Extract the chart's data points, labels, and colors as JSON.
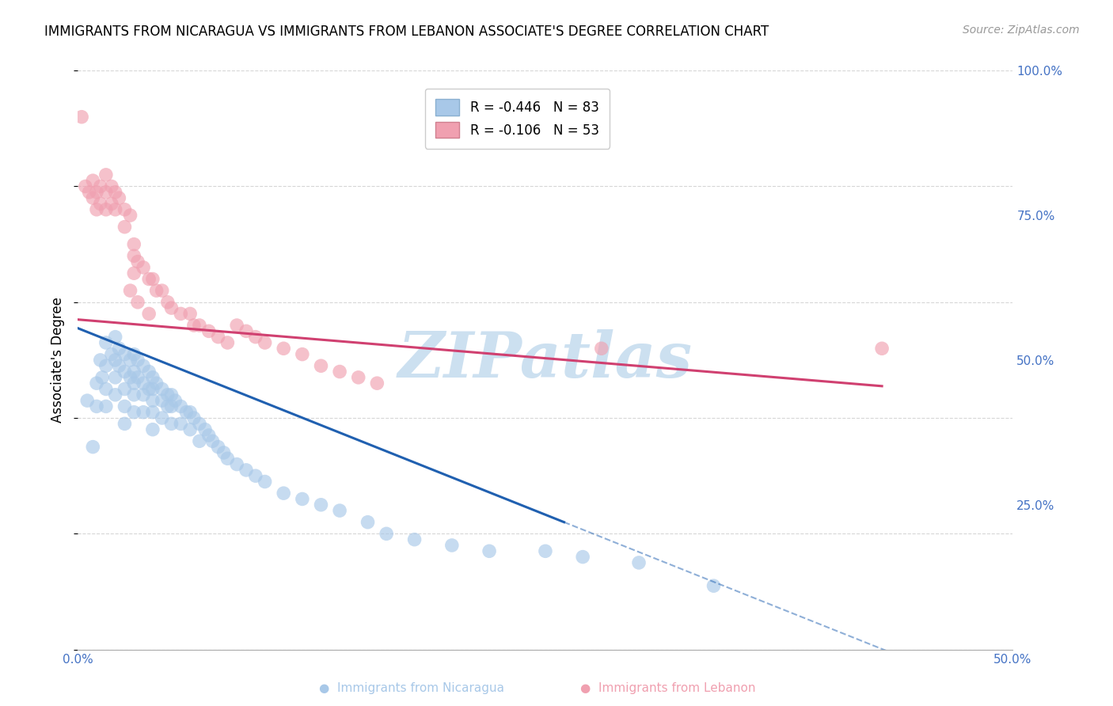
{
  "title": "IMMIGRANTS FROM NICARAGUA VS IMMIGRANTS FROM LEBANON ASSOCIATE'S DEGREE CORRELATION CHART",
  "source": "Source: ZipAtlas.com",
  "ylabel": "Associate's Degree",
  "xlim": [
    0.0,
    0.5
  ],
  "ylim": [
    0.0,
    1.0
  ],
  "xticks": [
    0.0,
    0.1,
    0.2,
    0.3,
    0.4,
    0.5
  ],
  "yticks_right": [
    0.0,
    0.25,
    0.5,
    0.75,
    1.0
  ],
  "ytick_labels_right": [
    "",
    "25.0%",
    "50.0%",
    "75.0%",
    "100.0%"
  ],
  "xtick_labels": [
    "0.0%",
    "",
    "",
    "",
    "",
    "50.0%"
  ],
  "legend_entries": [
    {
      "label": "R = -0.446   N = 83",
      "color": "#a8c8e8"
    },
    {
      "label": "R = -0.106   N = 53",
      "color": "#f0a0b0"
    }
  ],
  "nicaragua_color": "#a8c8e8",
  "lebanon_color": "#f0a0b0",
  "trendline_nicaragua_color": "#2060b0",
  "trendline_lebanon_color": "#d04070",
  "background_color": "#ffffff",
  "grid_color": "#cccccc",
  "watermark_color": "#cce0f0",
  "axis_label_color": "#4472c4",
  "nicaragua_points_x": [
    0.005,
    0.008,
    0.01,
    0.01,
    0.012,
    0.013,
    0.015,
    0.015,
    0.015,
    0.015,
    0.018,
    0.02,
    0.02,
    0.02,
    0.02,
    0.022,
    0.022,
    0.025,
    0.025,
    0.025,
    0.025,
    0.025,
    0.028,
    0.028,
    0.03,
    0.03,
    0.03,
    0.03,
    0.03,
    0.032,
    0.032,
    0.035,
    0.035,
    0.035,
    0.035,
    0.038,
    0.038,
    0.04,
    0.04,
    0.04,
    0.04,
    0.04,
    0.042,
    0.045,
    0.045,
    0.045,
    0.048,
    0.048,
    0.05,
    0.05,
    0.05,
    0.052,
    0.055,
    0.055,
    0.058,
    0.06,
    0.06,
    0.062,
    0.065,
    0.065,
    0.068,
    0.07,
    0.072,
    0.075,
    0.078,
    0.08,
    0.085,
    0.09,
    0.095,
    0.1,
    0.11,
    0.12,
    0.13,
    0.14,
    0.155,
    0.165,
    0.18,
    0.2,
    0.22,
    0.25,
    0.27,
    0.3,
    0.34
  ],
  "nicaragua_points_y": [
    0.43,
    0.35,
    0.46,
    0.42,
    0.5,
    0.47,
    0.53,
    0.49,
    0.45,
    0.42,
    0.51,
    0.54,
    0.5,
    0.47,
    0.44,
    0.52,
    0.49,
    0.51,
    0.48,
    0.45,
    0.42,
    0.39,
    0.5,
    0.47,
    0.51,
    0.48,
    0.46,
    0.44,
    0.41,
    0.5,
    0.47,
    0.49,
    0.46,
    0.44,
    0.41,
    0.48,
    0.45,
    0.47,
    0.45,
    0.43,
    0.41,
    0.38,
    0.46,
    0.45,
    0.43,
    0.4,
    0.44,
    0.42,
    0.44,
    0.42,
    0.39,
    0.43,
    0.42,
    0.39,
    0.41,
    0.41,
    0.38,
    0.4,
    0.39,
    0.36,
    0.38,
    0.37,
    0.36,
    0.35,
    0.34,
    0.33,
    0.32,
    0.31,
    0.3,
    0.29,
    0.27,
    0.26,
    0.25,
    0.24,
    0.22,
    0.2,
    0.19,
    0.18,
    0.17,
    0.17,
    0.16,
    0.15,
    0.11
  ],
  "lebanon_points_x": [
    0.002,
    0.004,
    0.006,
    0.008,
    0.008,
    0.01,
    0.01,
    0.012,
    0.012,
    0.015,
    0.015,
    0.015,
    0.018,
    0.018,
    0.02,
    0.02,
    0.022,
    0.025,
    0.025,
    0.028,
    0.03,
    0.03,
    0.03,
    0.032,
    0.035,
    0.038,
    0.04,
    0.042,
    0.045,
    0.048,
    0.05,
    0.055,
    0.06,
    0.062,
    0.065,
    0.07,
    0.075,
    0.08,
    0.085,
    0.09,
    0.095,
    0.1,
    0.11,
    0.12,
    0.13,
    0.14,
    0.15,
    0.16,
    0.028,
    0.032,
    0.038,
    0.28,
    0.43
  ],
  "lebanon_points_y": [
    0.92,
    0.8,
    0.79,
    0.81,
    0.78,
    0.79,
    0.76,
    0.8,
    0.77,
    0.82,
    0.79,
    0.76,
    0.8,
    0.77,
    0.79,
    0.76,
    0.78,
    0.76,
    0.73,
    0.75,
    0.7,
    0.68,
    0.65,
    0.67,
    0.66,
    0.64,
    0.64,
    0.62,
    0.62,
    0.6,
    0.59,
    0.58,
    0.58,
    0.56,
    0.56,
    0.55,
    0.54,
    0.53,
    0.56,
    0.55,
    0.54,
    0.53,
    0.52,
    0.51,
    0.49,
    0.48,
    0.47,
    0.46,
    0.62,
    0.6,
    0.58,
    0.52,
    0.52
  ],
  "trendline_nic_x0": 0.0,
  "trendline_nic_y0": 0.555,
  "trendline_nic_x1": 0.26,
  "trendline_nic_y1": 0.22,
  "trendline_nic_solid_end": 0.26,
  "trendline_nic_dash_end": 0.5,
  "trendline_leb_x0": 0.0,
  "trendline_leb_y0": 0.57,
  "trendline_leb_x1": 0.43,
  "trendline_leb_y1": 0.455
}
